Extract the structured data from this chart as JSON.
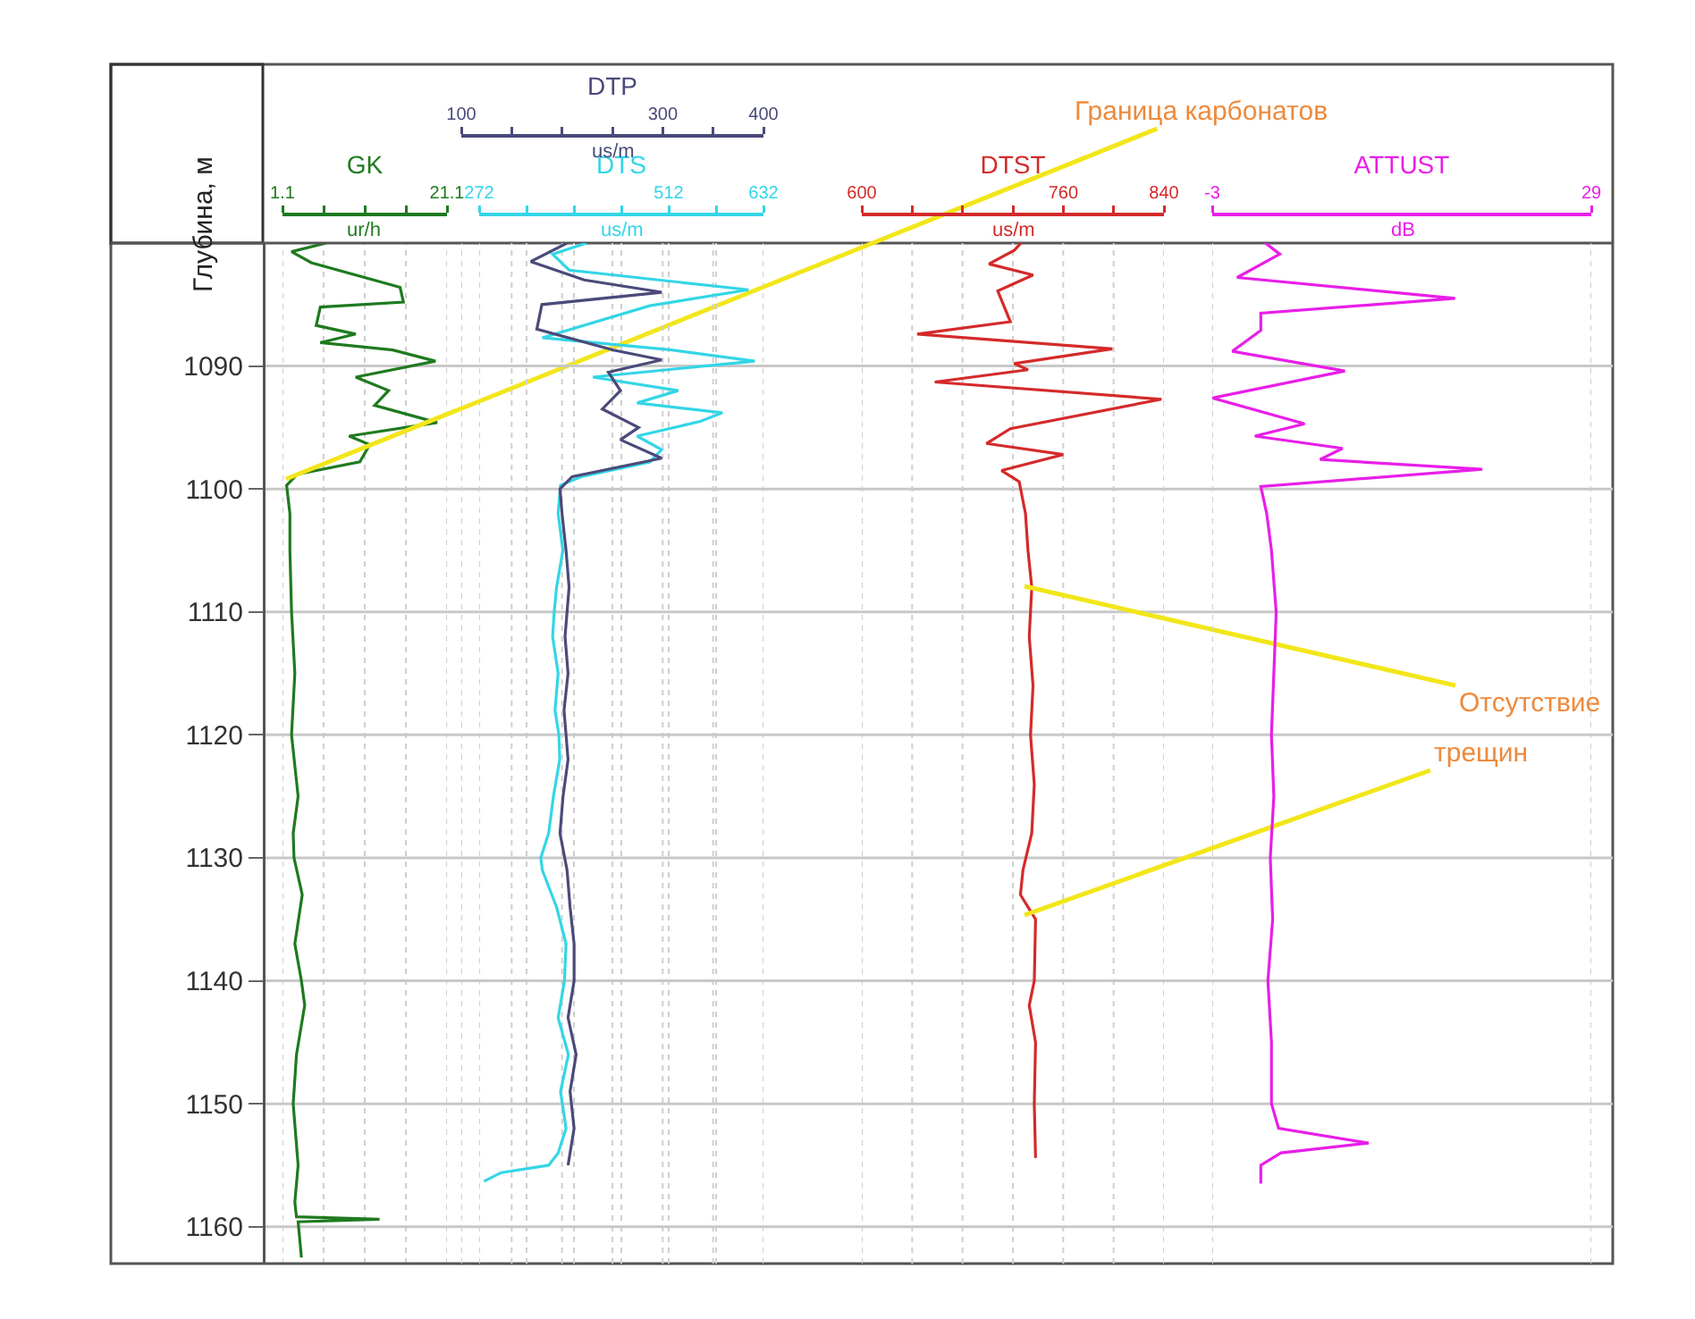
{
  "chart_data": [
    {
      "type": "line",
      "orientation": "horizontal",
      "ylabel": "Глубина, м",
      "ylim": [
        1163,
        1080
      ],
      "yticks": [
        1090,
        1100,
        1110,
        1120,
        1130,
        1140,
        1150,
        1160
      ],
      "grid": true,
      "xlabel": "ur/h",
      "xlim": [
        1.1,
        21.1
      ],
      "xticks": [
        1.1,
        {
          "value": 6.1,
          "label": null
        },
        {
          "value": 11.1,
          "label": null
        },
        {
          "value": 16.1,
          "label": null
        },
        21.1
      ],
      "annotations": [
        "Граница карбонатов"
      ],
      "series": [
        {
          "name": "GK",
          "color": "#1f7a1f",
          "x": [
            1080,
            1080.7,
            1081.6,
            1083.6,
            1084.8,
            1085.2,
            1086.7,
            1087.4,
            1088.1,
            1088.7,
            1089.6,
            1090.9,
            1092,
            1093.2,
            1094.6,
            1095.7,
            1096.4,
            1097.8,
            1098.8,
            1099.7,
            1102,
            1105,
            1110,
            1115,
            1120,
            1125,
            1128,
            1130,
            1133,
            1137,
            1140,
            1142,
            1146,
            1150,
            1155,
            1158,
            1159.2,
            1159.4,
            1159.6,
            1162.5
          ],
          "values": [
            6.4,
            2.2,
            4.6,
            15.4,
            15.8,
            5.7,
            5.2,
            10,
            5.7,
            14.5,
            19.7,
            10,
            14,
            12.3,
            19.9,
            9.2,
            11.7,
            10.5,
            2.9,
            1.6,
            2.0,
            2.0,
            2.2,
            2.6,
            2.2,
            3.0,
            2.4,
            2.5,
            3.5,
            2.6,
            3.4,
            3.8,
            2.8,
            2.4,
            3.0,
            2.6,
            2.8,
            12.9,
            3.0,
            3.4
          ]
        }
      ]
    },
    {
      "type": "line",
      "orientation": "horizontal",
      "ylim": [
        1163,
        1080
      ],
      "yticks": [
        1090,
        1100,
        1110,
        1120,
        1130,
        1140,
        1150,
        1160
      ],
      "grid": true,
      "tick_labels": "x",
      "xlabel": "us/m",
      "xlim": [
        272,
        632
      ],
      "xticks": [
        272,
        {
          "value": 332,
          "label": null
        },
        {
          "value": 392,
          "label": null
        },
        {
          "value": 452,
          "label": null
        },
        512,
        {
          "value": 572,
          "label": null
        },
        632
      ],
      "x2label": "us/m",
      "x2lim": [
        100,
        400
      ],
      "x2ticks": [
        100,
        {
          "value": 150,
          "label": null
        },
        {
          "value": 200,
          "label": null
        },
        {
          "value": 250,
          "label": null
        },
        300,
        {
          "value": 350,
          "label": null
        },
        400
      ],
      "series": [
        {
          "name": "DTP",
          "color": "#4a4a7a",
          "axis": "x2",
          "x": [
            1080,
            1081.5,
            1083,
            1084,
            1085,
            1087,
            1088.7,
            1089.5,
            1090.5,
            1092,
            1093.5,
            1095,
            1096,
            1097.5,
            1099,
            1100,
            1102,
            1105,
            1108,
            1112,
            1115,
            1118,
            1122,
            1125,
            1128,
            1131,
            1134,
            1137,
            1140,
            1143,
            1146,
            1149,
            1152,
            1155
          ],
          "values": [
            205,
            169,
            222,
            299,
            180,
            175,
            251,
            299,
            246,
            258,
            240,
            276,
            258,
            299,
            210,
            198,
            200,
            204,
            207,
            203,
            206,
            202,
            206,
            201,
            198,
            205,
            208,
            212,
            212,
            206,
            214,
            208,
            212,
            206
          ]
        },
        {
          "name": "DTS",
          "color": "#33d6e6",
          "x": [
            1080,
            1080.9,
            1082.2,
            1083.8,
            1085.1,
            1087.7,
            1088.7,
            1089.6,
            1090.9,
            1092,
            1093,
            1093.8,
            1094.5,
            1095.7,
            1096.8,
            1097.8,
            1099,
            1099.7,
            1102,
            1105,
            1108,
            1110,
            1112,
            1115,
            1118,
            1120,
            1122,
            1125,
            1128,
            1130,
            1131,
            1134,
            1137,
            1140,
            1143,
            1146,
            1149,
            1152,
            1154,
            1155,
            1155.6,
            1156.3
          ],
          "values": [
            408,
            365,
            386,
            613,
            488,
            352,
            516,
            621,
            416,
            524,
            472,
            580,
            552,
            472,
            503,
            488,
            401,
            375,
            372,
            378,
            370,
            367,
            365,
            372,
            368,
            373,
            374,
            366,
            360,
            350,
            352,
            370,
            382,
            380,
            372,
            385,
            375,
            382,
            372,
            360,
            300,
            278
          ]
        }
      ]
    },
    {
      "type": "line",
      "orientation": "horizontal",
      "ylim": [
        1163,
        1080
      ],
      "yticks": [
        1090,
        1100,
        1110,
        1120,
        1130,
        1140,
        1150,
        1160
      ],
      "grid": true,
      "tick_labels": "x",
      "xlabel": "us/m",
      "xlim": [
        600,
        840
      ],
      "xticks": [
        600,
        {
          "value": 640,
          "label": null
        },
        {
          "value": 680,
          "label": null
        },
        {
          "value": 720,
          "label": null
        },
        760,
        {
          "value": 800,
          "label": null
        },
        840
      ],
      "annotations": [
        "Отсутствие",
        "трещин"
      ],
      "series": [
        {
          "name": "DTST",
          "color": "#d42a2a",
          "x": [
            1079.7,
            1080.6,
            1081.7,
            1082.6,
            1083.9,
            1086.4,
            1087.4,
            1088.6,
            1089.8,
            1090.3,
            1091.3,
            1092.7,
            1095.1,
            1096.3,
            1097.2,
            1098.5,
            1099.4,
            1102,
            1105,
            1108,
            1112,
            1116,
            1120,
            1124,
            1128,
            1131,
            1133,
            1135,
            1140,
            1142,
            1145,
            1150,
            1154.4
          ],
          "values": [
            729,
            721,
            701,
            736,
            708,
            718,
            644,
            799,
            721,
            732,
            658,
            838,
            718,
            699,
            760,
            711,
            725,
            730,
            732,
            735,
            733,
            736,
            734,
            737,
            735,
            728,
            726,
            738,
            737,
            733,
            738,
            737,
            738
          ]
        }
      ]
    },
    {
      "type": "line",
      "orientation": "horizontal",
      "ylim": [
        1163,
        1080
      ],
      "yticks": [
        1090,
        1100,
        1110,
        1120,
        1130,
        1140,
        1150,
        1160
      ],
      "grid": true,
      "tick_labels": "x",
      "xlabel": "dB",
      "xlim": [
        -3,
        29
      ],
      "xticks": [
        -3,
        29
      ],
      "series": [
        {
          "name": "ATTUST",
          "color": "#e81ee8",
          "x": [
            1079.7,
            1080.9,
            1082.8,
            1084.5,
            1085.7,
            1087.1,
            1088.8,
            1090.4,
            1092.6,
            1094.7,
            1095.7,
            1096.7,
            1097.6,
            1098.4,
            1099.8,
            1102,
            1105,
            1110,
            1115,
            1120,
            1125,
            1130,
            1135,
            1140,
            1145,
            1150,
            1152,
            1153.2,
            1154,
            1155,
            1156.5
          ],
          "values": [
            1.1,
            2.7,
            -0.9,
            17.5,
            1.1,
            1.1,
            -1.3,
            8.2,
            -3.0,
            4.8,
            0.6,
            8.0,
            6.1,
            19.8,
            1.1,
            1.6,
            2.0,
            2.4,
            2.2,
            2.0,
            2.2,
            1.9,
            2.1,
            1.7,
            2.0,
            2.0,
            2.6,
            10.2,
            2.8,
            1.1,
            1.1
          ]
        }
      ]
    }
  ]
}
